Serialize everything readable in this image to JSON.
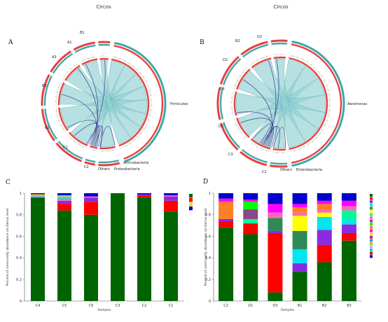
{
  "titles": {
    "left": "Circos",
    "right": "Circos"
  },
  "panels": {
    "a": "A",
    "b": "B",
    "c": "C",
    "d": "D"
  },
  "circos": [
    {
      "id": "A",
      "labels": [
        "Firmicutes",
        "Actinobacteria",
        "Proteobacteria",
        "Others",
        "C2",
        "C1",
        "B2",
        "B3",
        "A3",
        "A1",
        "B1"
      ]
    },
    {
      "id": "B",
      "labels": [
        "Aeromonas",
        "Enterobacteria",
        "Others",
        "C2",
        "C3",
        "D3",
        "D1",
        "D2",
        "B2",
        "D2"
      ]
    }
  ],
  "chart_data": [
    {
      "type": "bar",
      "panel": "C",
      "xlabel": "Samples",
      "ylabel": "Percent of community abundance on Genus level",
      "ylim": [
        0,
        1
      ],
      "yticks": [
        "0",
        "0.2",
        "0.4",
        "0.6",
        "0.8",
        "1"
      ],
      "categories": [
        "C4",
        "C5",
        "C6",
        "C3",
        "C2",
        "C1"
      ],
      "series": [
        {
          "color": "#006400",
          "values": [
            0.96,
            0.84,
            0.8,
            1.0,
            0.96,
            0.83
          ]
        },
        {
          "color": "#ff0000",
          "values": [
            0.0,
            0.06,
            0.12,
            0.0,
            0.02,
            0.1
          ]
        },
        {
          "color": "#8a2be2",
          "values": [
            0.0,
            0.03,
            0.04,
            0.0,
            0.01,
            0.04
          ]
        },
        {
          "color": "#ff69b4",
          "values": [
            0.01,
            0.02,
            0.01,
            0.0,
            0.0,
            0.01
          ]
        },
        {
          "color": "#00e5ee",
          "values": [
            0.01,
            0.02,
            0.0,
            0.0,
            0.0,
            0.0
          ]
        },
        {
          "color": "#ffd700",
          "values": [
            0.01,
            0.01,
            0.0,
            0.0,
            0.0,
            0.0
          ]
        },
        {
          "color": "#0000cd",
          "values": [
            0.01,
            0.02,
            0.03,
            0.0,
            0.01,
            0.02
          ]
        }
      ],
      "legend_colors": [
        "#006400",
        "#ff0000",
        "#ffd700",
        "#0000cd"
      ]
    },
    {
      "type": "bar",
      "panel": "D",
      "xlabel": "Samples",
      "ylabel": "Percent of community abundance on Genus level",
      "ylim": [
        0,
        1
      ],
      "yticks": [
        "0",
        "0.2",
        "0.4",
        "0.6",
        "0.8",
        "1"
      ],
      "categories": [
        "C2",
        "D1",
        "D3",
        "B1",
        "B2",
        "B3"
      ],
      "series": [
        {
          "color": "#006400",
          "values": [
            0.68,
            0.62,
            0.08,
            0.27,
            0.36,
            0.56
          ]
        },
        {
          "color": "#ff0000",
          "values": [
            0.06,
            0.1,
            0.55,
            0.0,
            0.16,
            0.07
          ]
        },
        {
          "color": "#8a2be2",
          "values": [
            0.02,
            0.0,
            0.02,
            0.08,
            0.14,
            0.08
          ]
        },
        {
          "color": "#00e5ee",
          "values": [
            0.0,
            0.0,
            0.0,
            0.13,
            0.12,
            0.04
          ]
        },
        {
          "color": "#2e8b57",
          "values": [
            0.0,
            0.0,
            0.12,
            0.17,
            0.0,
            0.0
          ]
        },
        {
          "color": "#ffff00",
          "values": [
            0.0,
            0.0,
            0.0,
            0.14,
            0.04,
            0.0
          ]
        },
        {
          "color": "#00fa9a",
          "values": [
            0.0,
            0.04,
            0.0,
            0.0,
            0.0,
            0.09
          ]
        },
        {
          "color": "#ff69b4",
          "values": [
            0.0,
            0.0,
            0.05,
            0.03,
            0.03,
            0.04
          ]
        },
        {
          "color": "#8b4789",
          "values": [
            0.0,
            0.09,
            0.0,
            0.0,
            0.0,
            0.0
          ]
        },
        {
          "color": "#00ff00",
          "values": [
            0.0,
            0.07,
            0.0,
            0.0,
            0.0,
            0.0
          ]
        },
        {
          "color": "#ff7f24",
          "values": [
            0.16,
            0.0,
            0.0,
            0.05,
            0.05,
            0.0
          ]
        },
        {
          "color": "#ff00ff",
          "values": [
            0.03,
            0.02,
            0.08,
            0.03,
            0.03,
            0.05
          ]
        },
        {
          "color": "#0000cd",
          "values": [
            0.05,
            0.06,
            0.1,
            0.1,
            0.07,
            0.07
          ]
        }
      ],
      "legend_colors": [
        "#006400",
        "#ff0000",
        "#8a2be2",
        "#00e5ee",
        "#2e8b57",
        "#ffff00",
        "#00fa9a",
        "#ff69b4",
        "#8b4789",
        "#00ff00",
        "#ff7f24",
        "#ff00ff",
        "#ffd700",
        "#c71585",
        "#1e90ff",
        "#9acd32",
        "#dda0dd",
        "#00ced1",
        "#b22222",
        "#0000cd"
      ]
    }
  ]
}
